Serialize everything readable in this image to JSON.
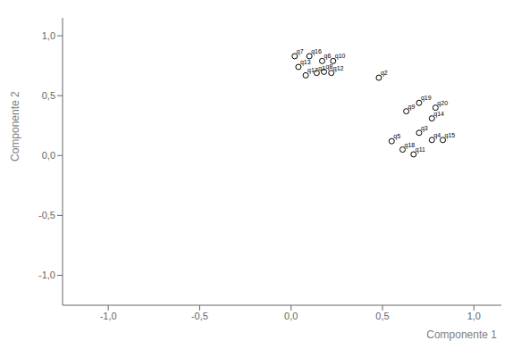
{
  "chart_data": {
    "type": "scatter",
    "x_label": "Componente 1",
    "y_label": "Componente 2",
    "point_labels": [
      "q7",
      "q16",
      "q6",
      "q10",
      "q13",
      "q17",
      "q1",
      "q8",
      "q12",
      "q2",
      "q9",
      "q19",
      "q20",
      "q14",
      "q3",
      "q5",
      "q18",
      "q4",
      "q15",
      "q11"
    ],
    "x": [
      0.02,
      0.1,
      0.17,
      0.23,
      0.04,
      0.08,
      0.14,
      0.18,
      0.22,
      0.48,
      0.63,
      0.7,
      0.79,
      0.77,
      0.7,
      0.55,
      0.61,
      0.77,
      0.83,
      0.67
    ],
    "values": [
      0.83,
      0.83,
      0.79,
      0.79,
      0.74,
      0.67,
      0.69,
      0.7,
      0.69,
      0.65,
      0.37,
      0.44,
      0.4,
      0.31,
      0.19,
      0.12,
      0.05,
      0.13,
      0.13,
      0.01
    ],
    "xlim": [
      -1.25,
      1.15
    ],
    "ylim": [
      -1.25,
      1.15
    ],
    "xticks": [
      {
        "value": -1.0,
        "label": "-1,0"
      },
      {
        "value": -0.5,
        "label": "-0,5"
      },
      {
        "value": 0.0,
        "label": "0,0"
      },
      {
        "value": 0.5,
        "label": "0,5"
      },
      {
        "value": 1.0,
        "label": "1,0"
      }
    ],
    "yticks": [
      {
        "value": -1.0,
        "label": "-1,0"
      },
      {
        "value": -0.5,
        "label": "-0,5"
      },
      {
        "value": 0.0,
        "label": "0,0"
      },
      {
        "value": 0.5,
        "label": "0,5"
      },
      {
        "value": 1.0,
        "label": "1,0"
      }
    ],
    "color": "black",
    "marker": "circle",
    "grid": false
  }
}
